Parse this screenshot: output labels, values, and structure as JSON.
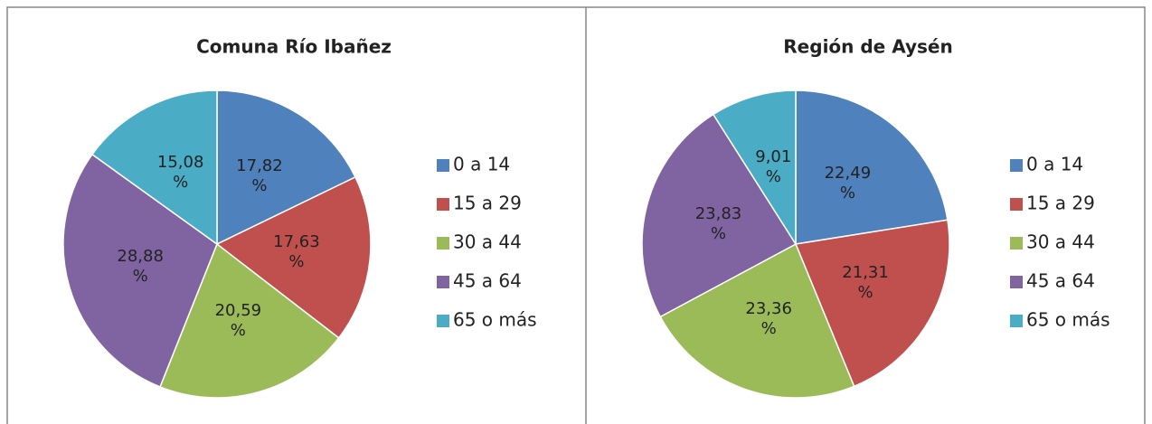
{
  "chart_data": [
    {
      "type": "pie",
      "title": "Comuna Río Ibañez",
      "categories": [
        "0 a 14",
        "15 a 29",
        "30 a 44",
        "45 a 64",
        "65 o más"
      ],
      "values": [
        17.82,
        17.63,
        20.59,
        28.88,
        15.08
      ],
      "value_labels": [
        "17,82 %",
        "17,63 %",
        "20,59 %",
        "28,88 %",
        "15,08 %"
      ],
      "colors": [
        "#4f81bd",
        "#c0504d",
        "#9bbb59",
        "#8064a2",
        "#4bacc6"
      ],
      "legend": "right"
    },
    {
      "type": "pie",
      "title": "Región de Aysén",
      "categories": [
        "0 a 14",
        "15 a 29",
        "30 a 44",
        "45 a 64",
        "65 o más"
      ],
      "values": [
        22.49,
        21.31,
        23.36,
        23.83,
        9.01
      ],
      "value_labels": [
        "22,49 %",
        "21,31 %",
        "23,36 %",
        "23,83 %",
        "9,01 %"
      ],
      "colors": [
        "#4f81bd",
        "#c0504d",
        "#9bbb59",
        "#8064a2",
        "#4bacc6"
      ],
      "legend": "right"
    }
  ]
}
